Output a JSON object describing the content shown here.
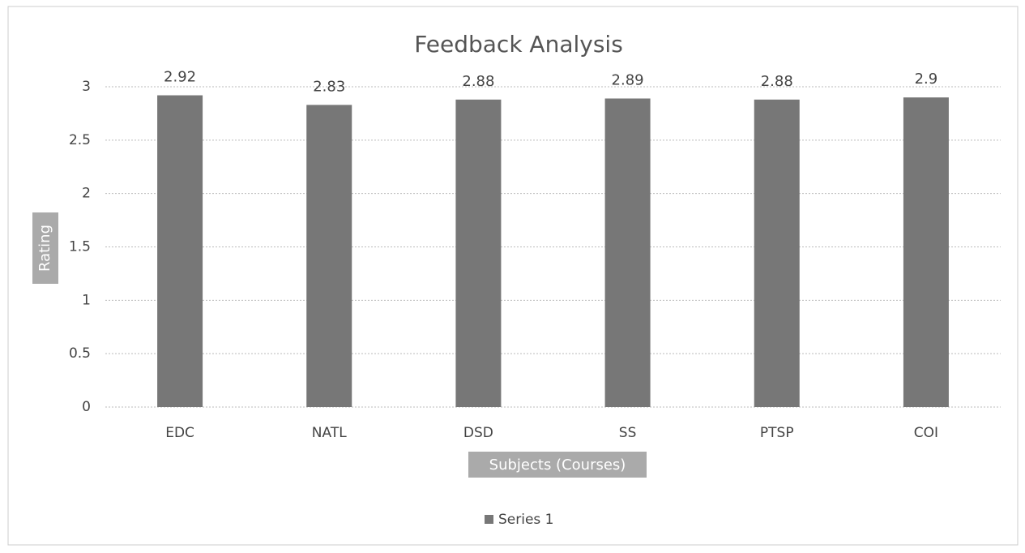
{
  "chart_data": {
    "type": "bar",
    "title": "Feedback Analysis",
    "x_label": "Subjects (Courses)",
    "y_label": "Rating",
    "categories": [
      "EDC",
      "NATL",
      "DSD",
      "SS",
      "PTSP",
      "COI"
    ],
    "series": [
      {
        "name": "Series 1",
        "color": "#777777",
        "values": [
          2.92,
          2.83,
          2.88,
          2.89,
          2.88,
          2.9
        ]
      }
    ],
    "ylim": [
      0,
      3
    ],
    "yticks": [
      0,
      0.5,
      1,
      1.5,
      2,
      2.5,
      3
    ],
    "grid": true,
    "legend": "bottom"
  }
}
